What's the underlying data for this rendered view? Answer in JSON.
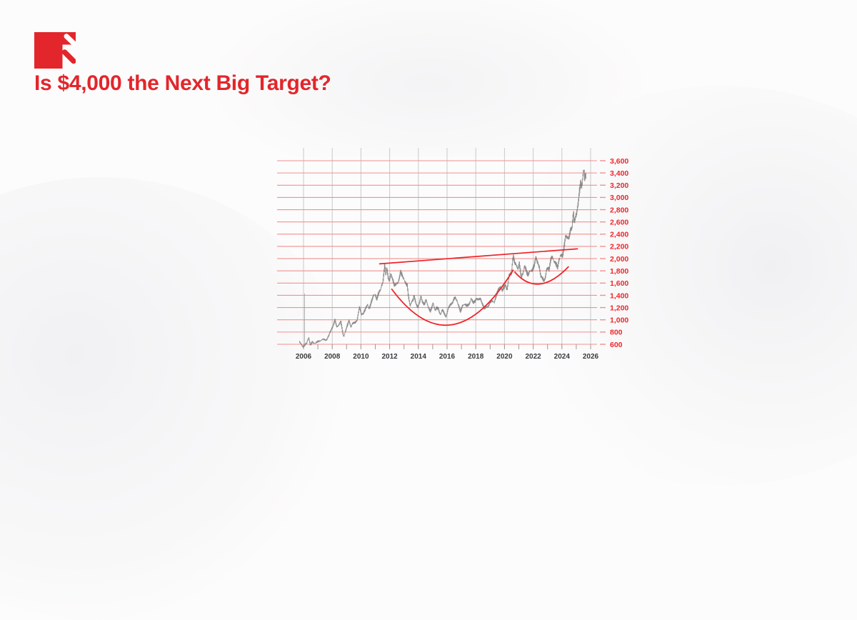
{
  "header": {
    "headline": "Is $4,000 the Next Big Target?",
    "logo": {
      "name": "brand-logo",
      "color": "#e2262b",
      "accent_white": "#ffffff"
    }
  },
  "colors": {
    "brand_red": "#e2262b",
    "headline_red": "#e2262b",
    "grid_horizontal_red": "#f0918f",
    "axis_label_red": "#ef262c",
    "grid_vertical_gray": "#c9c9cb",
    "minor_tick_gray": "#9a9a9c",
    "price_bar_gray": "#6e6e6e",
    "x_label_dark": "#3a3b3f",
    "annotation_red": "#ee2328",
    "background": "#fdfcfc"
  },
  "chart_data": {
    "type": "line",
    "title": "",
    "xlabel": "",
    "ylabel": "",
    "xlim": [
      2005.7,
      2026.6
    ],
    "ylim": [
      600,
      3600
    ],
    "grid": "on",
    "legend": "none",
    "x_major_years": [
      2006,
      2008,
      2010,
      2012,
      2014,
      2016,
      2018,
      2020,
      2022,
      2024,
      2026
    ],
    "x_tick_labels": [
      "2006",
      "2008",
      "2010",
      "2012",
      "2014",
      "2016",
      "2018",
      "2020",
      "2022",
      "2024",
      "2026"
    ],
    "x_minor_step_years": 1,
    "y_tick_values": [
      600,
      800,
      1000,
      1200,
      1400,
      1600,
      1800,
      2000,
      2200,
      2400,
      2600,
      2800,
      3000,
      3200,
      3400,
      3600
    ],
    "y_tick_labels": [
      "600",
      "800",
      "1,000",
      "1,200",
      "1,400",
      "1,600",
      "1,800",
      "2,000",
      "2,200",
      "2,400",
      "2,600",
      "2,800",
      "3,000",
      "3,200",
      "3,400",
      "3,600"
    ],
    "series": [
      {
        "name": "price",
        "style": "hairy-hlc-bars",
        "points": [
          [
            2005.72,
            640
          ],
          [
            2005.85,
            600
          ],
          [
            2006.0,
            560
          ],
          [
            2006.12,
            590
          ],
          [
            2006.25,
            620
          ],
          [
            2006.38,
            715
          ],
          [
            2006.5,
            585
          ],
          [
            2006.62,
            640
          ],
          [
            2006.8,
            610
          ],
          [
            2007.0,
            645
          ],
          [
            2007.2,
            660
          ],
          [
            2007.4,
            680
          ],
          [
            2007.6,
            670
          ],
          [
            2007.8,
            750
          ],
          [
            2007.95,
            840
          ],
          [
            2008.1,
            920
          ],
          [
            2008.2,
            1000
          ],
          [
            2008.35,
            875
          ],
          [
            2008.5,
            930
          ],
          [
            2008.62,
            975
          ],
          [
            2008.75,
            790
          ],
          [
            2008.82,
            720
          ],
          [
            2008.95,
            820
          ],
          [
            2009.1,
            930
          ],
          [
            2009.2,
            995
          ],
          [
            2009.32,
            880
          ],
          [
            2009.45,
            940
          ],
          [
            2009.6,
            955
          ],
          [
            2009.75,
            1000
          ],
          [
            2009.92,
            1200
          ],
          [
            2010.05,
            1090
          ],
          [
            2010.2,
            1115
          ],
          [
            2010.35,
            1180
          ],
          [
            2010.48,
            1245
          ],
          [
            2010.6,
            1185
          ],
          [
            2010.75,
            1300
          ],
          [
            2010.9,
            1400
          ],
          [
            2011.0,
            1415
          ],
          [
            2011.12,
            1330
          ],
          [
            2011.25,
            1440
          ],
          [
            2011.4,
            1510
          ],
          [
            2011.55,
            1610
          ],
          [
            2011.68,
            1910
          ],
          [
            2011.75,
            1740
          ],
          [
            2011.82,
            1860
          ],
          [
            2011.92,
            1680
          ],
          [
            2012.0,
            1620
          ],
          [
            2012.1,
            1750
          ],
          [
            2012.22,
            1680
          ],
          [
            2012.35,
            1560
          ],
          [
            2012.5,
            1580
          ],
          [
            2012.62,
            1620
          ],
          [
            2012.78,
            1790
          ],
          [
            2012.9,
            1720
          ],
          [
            2013.0,
            1670
          ],
          [
            2013.12,
            1600
          ],
          [
            2013.25,
            1560
          ],
          [
            2013.32,
            1400
          ],
          [
            2013.45,
            1230
          ],
          [
            2013.55,
            1290
          ],
          [
            2013.65,
            1320
          ],
          [
            2013.72,
            1395
          ],
          [
            2013.85,
            1280
          ],
          [
            2013.98,
            1200
          ],
          [
            2014.1,
            1270
          ],
          [
            2014.2,
            1390
          ],
          [
            2014.32,
            1290
          ],
          [
            2014.45,
            1250
          ],
          [
            2014.55,
            1325
          ],
          [
            2014.7,
            1215
          ],
          [
            2014.85,
            1140
          ],
          [
            2014.95,
            1195
          ],
          [
            2015.05,
            1280
          ],
          [
            2015.18,
            1150
          ],
          [
            2015.3,
            1200
          ],
          [
            2015.42,
            1180
          ],
          [
            2015.55,
            1085
          ],
          [
            2015.7,
            1160
          ],
          [
            2015.82,
            1105
          ],
          [
            2015.95,
            1055
          ],
          [
            2016.1,
            1180
          ],
          [
            2016.25,
            1245
          ],
          [
            2016.4,
            1290
          ],
          [
            2016.55,
            1365
          ],
          [
            2016.7,
            1310
          ],
          [
            2016.82,
            1240
          ],
          [
            2016.95,
            1135
          ],
          [
            2017.1,
            1230
          ],
          [
            2017.25,
            1255
          ],
          [
            2017.4,
            1230
          ],
          [
            2017.55,
            1255
          ],
          [
            2017.7,
            1345
          ],
          [
            2017.82,
            1280
          ],
          [
            2017.95,
            1300
          ],
          [
            2018.05,
            1355
          ],
          [
            2018.2,
            1320
          ],
          [
            2018.35,
            1345
          ],
          [
            2018.5,
            1255
          ],
          [
            2018.62,
            1180
          ],
          [
            2018.75,
            1200
          ],
          [
            2018.9,
            1230
          ],
          [
            2019.0,
            1290
          ],
          [
            2019.15,
            1310
          ],
          [
            2019.3,
            1280
          ],
          [
            2019.45,
            1400
          ],
          [
            2019.6,
            1500
          ],
          [
            2019.72,
            1545
          ],
          [
            2019.85,
            1470
          ],
          [
            2019.95,
            1520
          ],
          [
            2020.1,
            1580
          ],
          [
            2020.2,
            1480
          ],
          [
            2020.35,
            1720
          ],
          [
            2020.5,
            1770
          ],
          [
            2020.62,
            2060
          ],
          [
            2020.72,
            1930
          ],
          [
            2020.85,
            1880
          ],
          [
            2020.95,
            1840
          ],
          [
            2021.05,
            1930
          ],
          [
            2021.18,
            1700
          ],
          [
            2021.3,
            1745
          ],
          [
            2021.42,
            1890
          ],
          [
            2021.55,
            1790
          ],
          [
            2021.65,
            1730
          ],
          [
            2021.78,
            1800
          ],
          [
            2021.9,
            1790
          ],
          [
            2022.0,
            1830
          ],
          [
            2022.1,
            1900
          ],
          [
            2022.2,
            2040
          ],
          [
            2022.32,
            1930
          ],
          [
            2022.45,
            1845
          ],
          [
            2022.55,
            1720
          ],
          [
            2022.65,
            1700
          ],
          [
            2022.75,
            1635
          ],
          [
            2022.85,
            1660
          ],
          [
            2022.95,
            1815
          ],
          [
            2023.05,
            1865
          ],
          [
            2023.12,
            1815
          ],
          [
            2023.25,
            1990
          ],
          [
            2023.35,
            2030
          ],
          [
            2023.45,
            1960
          ],
          [
            2023.6,
            1920
          ],
          [
            2023.72,
            1850
          ],
          [
            2023.82,
            1985
          ],
          [
            2023.95,
            2060
          ],
          [
            2024.05,
            2030
          ],
          [
            2024.15,
            2160
          ],
          [
            2024.28,
            2390
          ],
          [
            2024.4,
            2330
          ],
          [
            2024.5,
            2320
          ],
          [
            2024.62,
            2480
          ],
          [
            2024.72,
            2520
          ],
          [
            2024.82,
            2770
          ],
          [
            2024.88,
            2580
          ],
          [
            2024.95,
            2640
          ],
          [
            2025.05,
            2750
          ],
          [
            2025.15,
            2920
          ],
          [
            2025.25,
            3120
          ],
          [
            2025.32,
            3240
          ],
          [
            2025.4,
            3160
          ],
          [
            2025.48,
            3320
          ],
          [
            2025.55,
            3495
          ],
          [
            2025.6,
            3300
          ],
          [
            2025.65,
            3380
          ],
          [
            2025.68,
            3350
          ]
        ]
      }
    ],
    "annotations": {
      "trendline": {
        "from": [
          2011.3,
          1915
        ],
        "to": [
          2025.08,
          2160
        ]
      },
      "cups": [
        {
          "start": [
            2012.15,
            1500
          ],
          "bottom": [
            2016.35,
            920
          ],
          "end": [
            2020.6,
            1810
          ]
        },
        {
          "start": [
            2020.72,
            1780
          ],
          "bottom": [
            2022.45,
            1585
          ],
          "end": [
            2024.45,
            1865
          ]
        }
      ],
      "artifact_spike": {
        "x": 2006.07,
        "high": 1430,
        "low": 600
      }
    },
    "render_hints": {
      "bar_step_years": 0.035,
      "bar_noise_base": 6,
      "bar_noise_scale": 0.013
    }
  }
}
